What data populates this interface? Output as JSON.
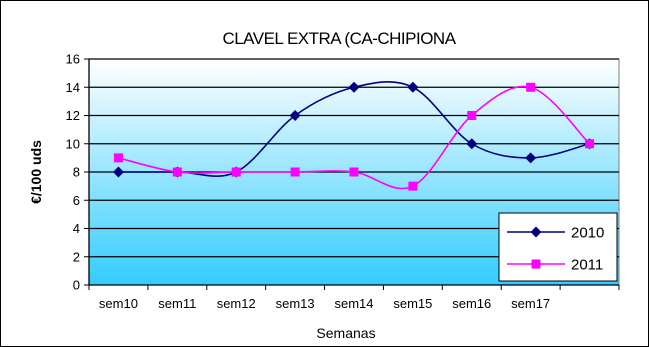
{
  "chart_data": {
    "type": "line",
    "title": "CLAVEL EXTRA (CA-CHIPIONA",
    "xlabel": "Semanas",
    "ylabel": "€/100 uds",
    "categories": [
      "sem10",
      "sem11",
      "sem12",
      "sem13",
      "sem14",
      "sem15",
      "sem16",
      "sem17",
      ""
    ],
    "ylim": [
      0,
      16
    ],
    "yticks": [
      0,
      2,
      4,
      6,
      8,
      10,
      12,
      14,
      16
    ],
    "grid": true,
    "legend_position": "bottom-right",
    "smooth": true,
    "series": [
      {
        "name": "2010",
        "color": "#000080",
        "marker": "diamond",
        "values": [
          8,
          8,
          8,
          12,
          14,
          14,
          10,
          9,
          10
        ]
      },
      {
        "name": "2011",
        "color": "#FF00FF",
        "marker": "square",
        "values": [
          9,
          8,
          8,
          8,
          8,
          7,
          12,
          14,
          10
        ]
      }
    ],
    "colors": {
      "plot_background_top": "#FFFFFF",
      "plot_background_bottom": "#33CCFF",
      "gridline": "#000000"
    }
  }
}
